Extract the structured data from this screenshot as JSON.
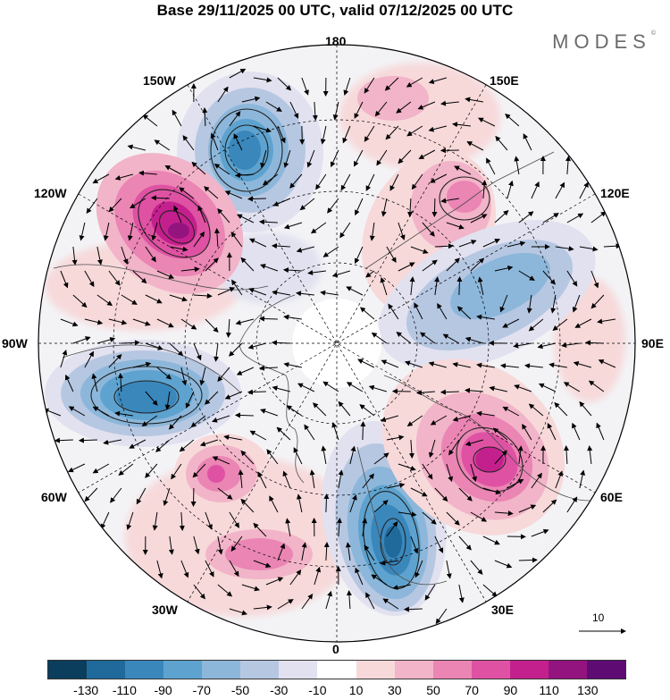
{
  "title": "Base 29/11/2025 00 UTC, valid 07/12/2025 00 UTC",
  "brand": "MODES",
  "brand_mark": "©",
  "longitude_labels": {
    "top": "180",
    "bottom": "0",
    "left": "90W",
    "right": "90E",
    "upper_left_1": "150W",
    "upper_left_2": "120W",
    "upper_right_1": "150E",
    "upper_right_2": "120E",
    "lower_left_1": "60W",
    "lower_left_2": "30W",
    "lower_right_1": "60E",
    "lower_right_2": "30E"
  },
  "wind_reference": {
    "label": "10",
    "icon": "reference-arrow-icon"
  },
  "colorbar": {
    "colors": [
      "#0b3d5c",
      "#1f6a9a",
      "#3a87bc",
      "#5ea3cf",
      "#8db7da",
      "#b6c7e2",
      "#e1e1f0",
      "#ffffff",
      "#f7d9da",
      "#f2b4c8",
      "#ea85b4",
      "#df52a3",
      "#c4208d",
      "#94147f",
      "#5e0c74"
    ],
    "ticks": [
      "-130",
      "-110",
      "-90",
      "-70",
      "-50",
      "-30",
      "-10",
      "10",
      "30",
      "50",
      "70",
      "90",
      "110",
      "130"
    ]
  },
  "anomaly_centers": [
    {
      "name": "low-pacific-north",
      "value": -110
    },
    {
      "name": "high-alaska-west",
      "value": 130
    },
    {
      "name": "high-east-siberia",
      "value": 50
    },
    {
      "name": "low-central-siberia",
      "value": -70
    },
    {
      "name": "low-canada-labrador",
      "value": -110
    },
    {
      "name": "high-atlantic-west",
      "value": 70
    },
    {
      "name": "high-atlantic-south",
      "value": 50
    },
    {
      "name": "low-north-sea",
      "value": -110
    },
    {
      "name": "high-ural",
      "value": 110
    }
  ]
}
